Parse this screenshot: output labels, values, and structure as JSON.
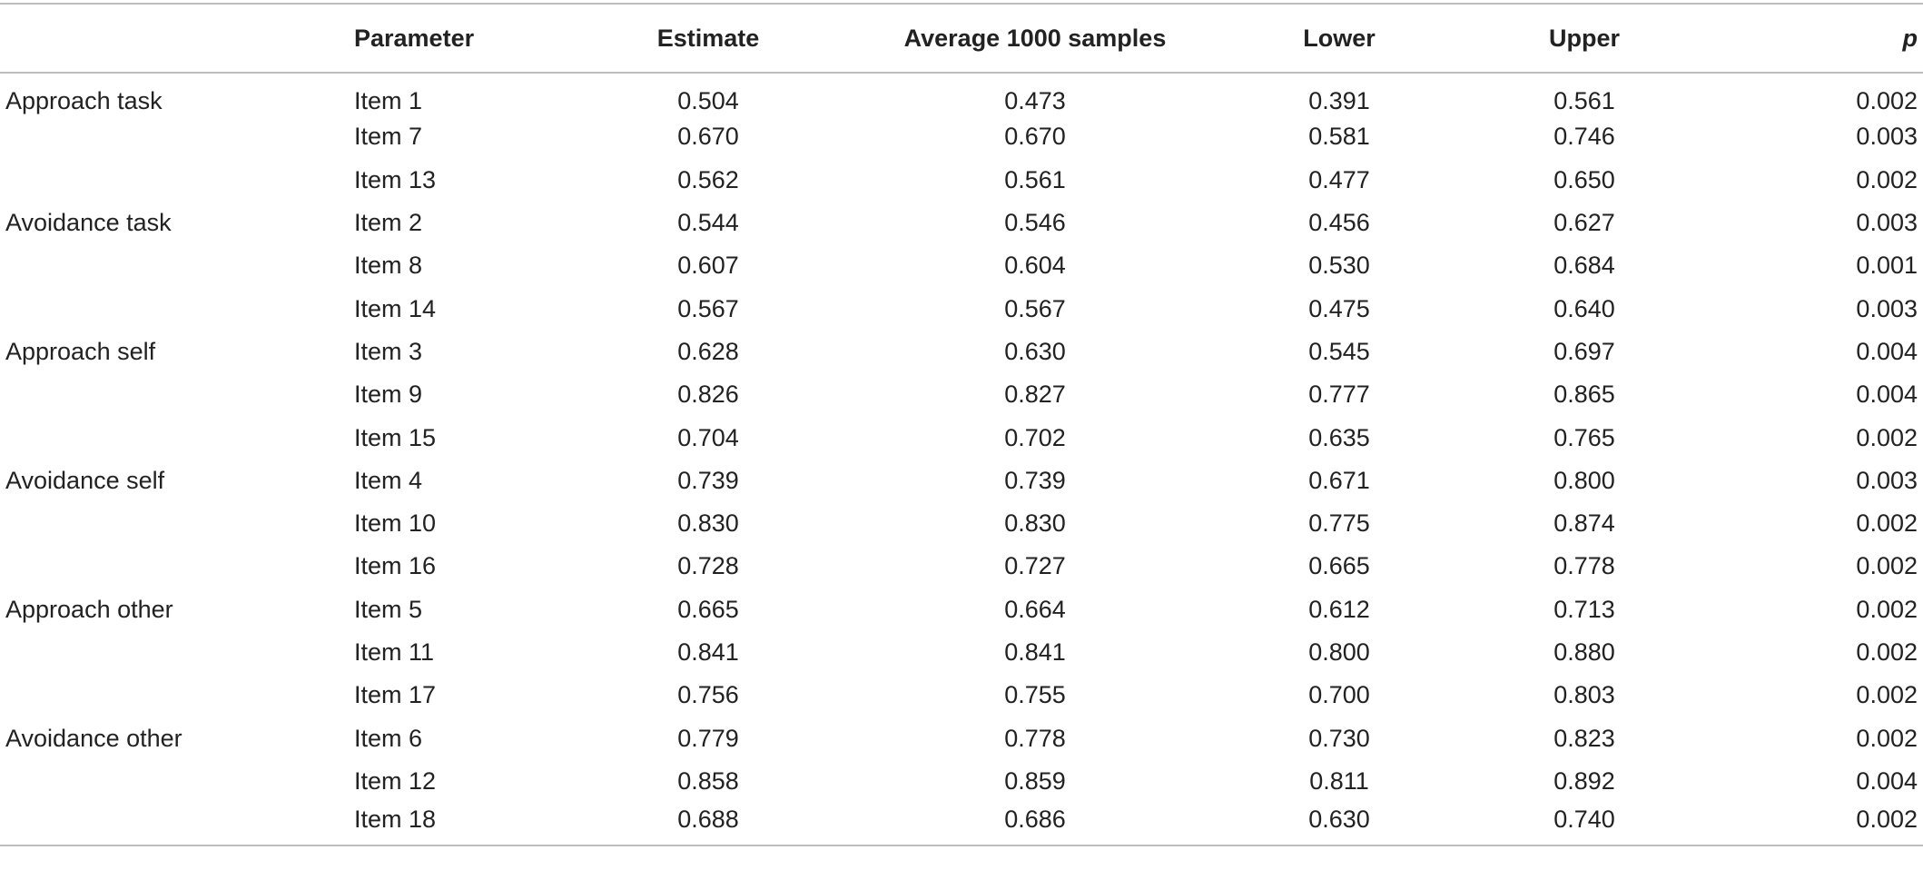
{
  "table": {
    "headers": {
      "group": "",
      "parameter": "Parameter",
      "estimate": "Estimate",
      "average": "Average 1000 samples",
      "lower": "Lower",
      "upper": "Upper",
      "p": "p"
    },
    "rows": [
      {
        "group": "Approach task",
        "parameter": "Item 1",
        "estimate": "0.504",
        "average": "0.473",
        "lower": "0.391",
        "upper": "0.561",
        "p": "0.002"
      },
      {
        "group": "",
        "parameter": "Item 7",
        "estimate": "0.670",
        "average": "0.670",
        "lower": "0.581",
        "upper": "0.746",
        "p": "0.003"
      },
      {
        "group": "",
        "parameter": "Item 13",
        "estimate": "0.562",
        "average": "0.561",
        "lower": "0.477",
        "upper": "0.650",
        "p": "0.002"
      },
      {
        "group": "Avoidance task",
        "parameter": "Item 2",
        "estimate": "0.544",
        "average": "0.546",
        "lower": "0.456",
        "upper": "0.627",
        "p": "0.003"
      },
      {
        "group": "",
        "parameter": "Item 8",
        "estimate": "0.607",
        "average": "0.604",
        "lower": "0.530",
        "upper": "0.684",
        "p": "0.001"
      },
      {
        "group": "",
        "parameter": "Item 14",
        "estimate": "0.567",
        "average": "0.567",
        "lower": "0.475",
        "upper": "0.640",
        "p": "0.003"
      },
      {
        "group": "Approach self",
        "parameter": "Item 3",
        "estimate": "0.628",
        "average": "0.630",
        "lower": "0.545",
        "upper": "0.697",
        "p": "0.004"
      },
      {
        "group": "",
        "parameter": "Item 9",
        "estimate": "0.826",
        "average": "0.827",
        "lower": "0.777",
        "upper": "0.865",
        "p": "0.004"
      },
      {
        "group": "",
        "parameter": "Item 15",
        "estimate": "0.704",
        "average": "0.702",
        "lower": "0.635",
        "upper": "0.765",
        "p": "0.002"
      },
      {
        "group": "Avoidance self",
        "parameter": "Item 4",
        "estimate": "0.739",
        "average": "0.739",
        "lower": "0.671",
        "upper": "0.800",
        "p": "0.003"
      },
      {
        "group": "",
        "parameter": "Item 10",
        "estimate": "0.830",
        "average": "0.830",
        "lower": "0.775",
        "upper": "0.874",
        "p": "0.002"
      },
      {
        "group": "",
        "parameter": "Item 16",
        "estimate": "0.728",
        "average": "0.727",
        "lower": "0.665",
        "upper": "0.778",
        "p": "0.002"
      },
      {
        "group": "Approach other",
        "parameter": "Item 5",
        "estimate": "0.665",
        "average": "0.664",
        "lower": "0.612",
        "upper": "0.713",
        "p": "0.002"
      },
      {
        "group": "",
        "parameter": "Item 11",
        "estimate": "0.841",
        "average": "0.841",
        "lower": "0.800",
        "upper": "0.880",
        "p": "0.002"
      },
      {
        "group": "",
        "parameter": "Item 17",
        "estimate": "0.756",
        "average": "0.755",
        "lower": "0.700",
        "upper": "0.803",
        "p": "0.002"
      },
      {
        "group": "Avoidance other",
        "parameter": "Item 6",
        "estimate": "0.779",
        "average": "0.778",
        "lower": "0.730",
        "upper": "0.823",
        "p": "0.002"
      },
      {
        "group": "",
        "parameter": "Item 12",
        "estimate": "0.858",
        "average": "0.859",
        "lower": "0.811",
        "upper": "0.892",
        "p": "0.004"
      },
      {
        "group": "",
        "parameter": "Item 18",
        "estimate": "0.688",
        "average": "0.686",
        "lower": "0.630",
        "upper": "0.740",
        "p": "0.002"
      }
    ]
  }
}
